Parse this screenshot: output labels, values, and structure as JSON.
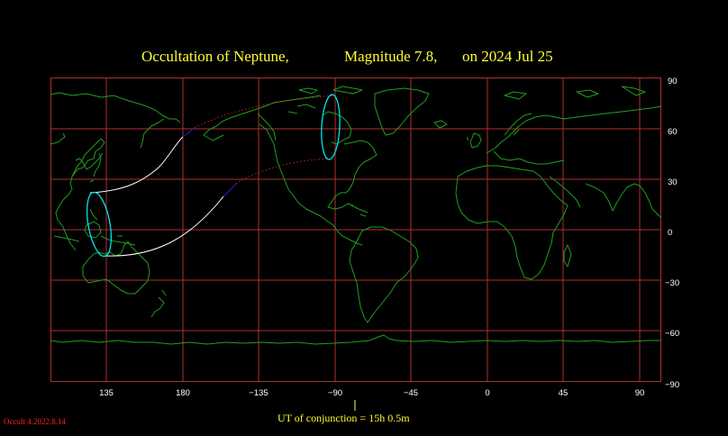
{
  "title": {
    "event": "Occultation  of  Neptune,",
    "magnitude": "Magnitude 7.8,",
    "date": "on  2024 Jul 25"
  },
  "map": {
    "projection": "equirectangular",
    "center_longitude": 45,
    "longitude_ticks": [
      "135",
      "180",
      "−135",
      "−90",
      "−45",
      "0",
      "45",
      "90"
    ],
    "latitude_ticks": [
      "90",
      "60",
      "30",
      "0",
      "−30",
      "−60",
      "−90"
    ],
    "colors": {
      "background": "#000000",
      "grid": "#b03030",
      "coastline": "#1fa01f",
      "path_limit_day": "#ffffff",
      "path_limit_twilight": "#2020d0",
      "path_limit_night": "#c02020",
      "visibility_ovals": "#00e5ee",
      "title_text": "#ffff33"
    }
  },
  "conjunction": {
    "label": "UT of conjunction = 15h  0.5m",
    "marker": "|"
  },
  "credit": "Occult 4.2022.8.14"
}
